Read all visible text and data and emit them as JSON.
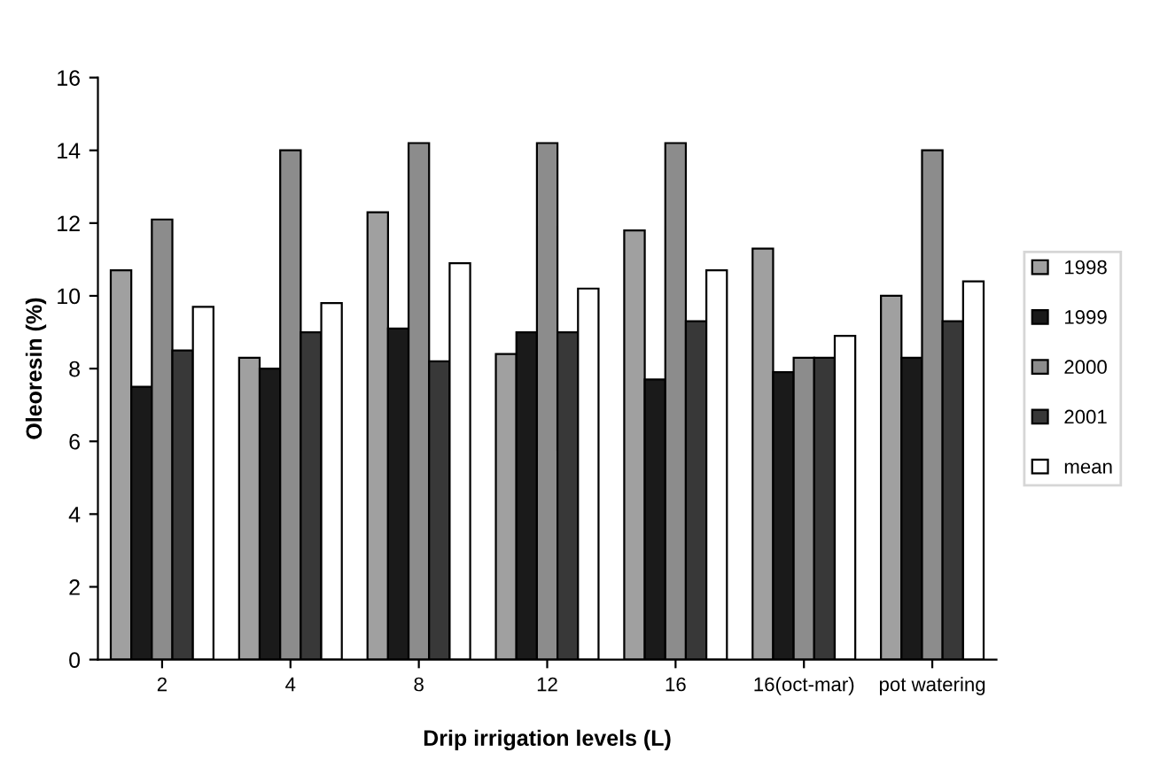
{
  "chart_data": {
    "type": "bar",
    "xlabel": "Drip irrigation levels (L)",
    "ylabel": "Oleoresin (%)",
    "categories": [
      "2",
      "4",
      "8",
      "12",
      "16",
      "16(oct-mar)",
      "pot watering"
    ],
    "series": [
      {
        "name": "1998",
        "color": "#a0a0a0",
        "values": [
          10.7,
          8.3,
          12.3,
          8.4,
          11.8,
          11.3,
          10.0
        ]
      },
      {
        "name": "1999",
        "color": "#1a1a1a",
        "values": [
          7.5,
          8.0,
          9.1,
          9.0,
          7.7,
          7.9,
          8.3
        ]
      },
      {
        "name": "2000",
        "color": "#8c8c8c",
        "values": [
          12.1,
          14.0,
          14.2,
          14.2,
          14.2,
          8.3,
          14.0
        ]
      },
      {
        "name": "2001",
        "color": "#383838",
        "values": [
          8.5,
          9.0,
          8.2,
          9.0,
          9.3,
          8.3,
          9.3
        ]
      },
      {
        "name": "mean",
        "color": "#ffffff",
        "values": [
          9.7,
          9.8,
          10.9,
          10.2,
          10.7,
          8.9,
          10.4
        ]
      }
    ],
    "ylim": [
      0,
      16
    ],
    "yticks": [
      0,
      2,
      4,
      6,
      8,
      10,
      12,
      14,
      16
    ],
    "legend": "right"
  }
}
